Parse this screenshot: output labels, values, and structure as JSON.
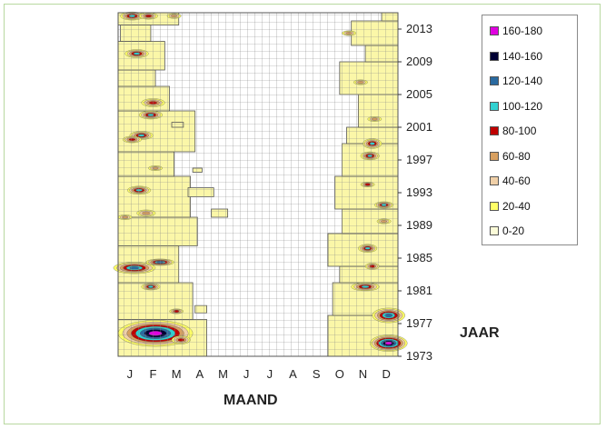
{
  "chart_data": {
    "type": "heatmap",
    "xlabel": "MAAND",
    "ylabel": "JAAR",
    "x_categories": [
      "J",
      "F",
      "M",
      "A",
      "M",
      "J",
      "J",
      "A",
      "S",
      "O",
      "N",
      "D"
    ],
    "y_range": [
      1973,
      2015
    ],
    "y_ticks": [
      1973,
      1977,
      1981,
      1985,
      1989,
      1993,
      1997,
      2001,
      2005,
      2009,
      2013
    ],
    "grid": true,
    "legend_position": "right",
    "legend": [
      {
        "label": "160-180",
        "color": "#e000e0"
      },
      {
        "label": "140-160",
        "color": "#000033"
      },
      {
        "label": "120-140",
        "color": "#2a6aa0"
      },
      {
        "label": "100-120",
        "color": "#30d0d0"
      },
      {
        "label": "80-100",
        "color": "#c00000"
      },
      {
        "label": "60-80",
        "color": "#d8a060"
      },
      {
        "label": "40-60",
        "color": "#f0d0a8"
      },
      {
        "label": "20-40",
        "color": "#ffff66"
      },
      {
        "label": "0-20",
        "color": "#fbfbd8"
      }
    ]
  }
}
